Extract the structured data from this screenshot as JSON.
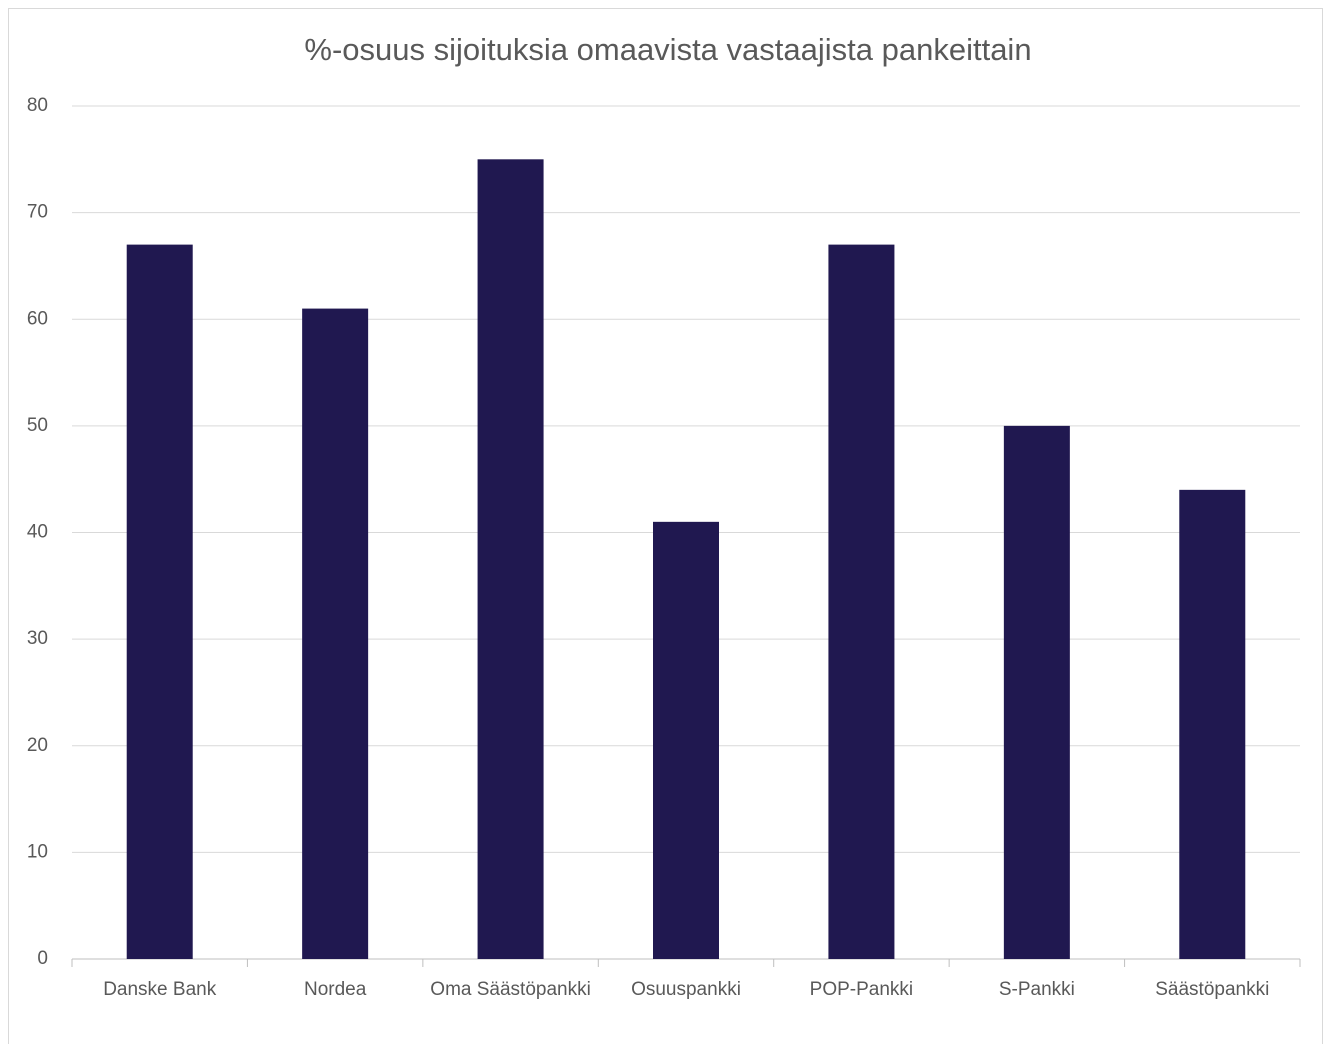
{
  "chart_data": {
    "type": "bar",
    "title": "%-osuus sijoituksia omaavista vastaajista pankeittain",
    "categories": [
      "Danske Bank",
      "Nordea",
      "Oma Säästöpankki",
      "Osuuspankki",
      "POP-Pankki",
      "S-Pankki",
      "Säästöpankki"
    ],
    "values": [
      67,
      61,
      75,
      41,
      67,
      50,
      44
    ],
    "color": "#201850",
    "ylim": [
      0,
      80
    ],
    "yticks": [
      0,
      10,
      20,
      30,
      40,
      50,
      60,
      70,
      80
    ],
    "grid": true
  }
}
